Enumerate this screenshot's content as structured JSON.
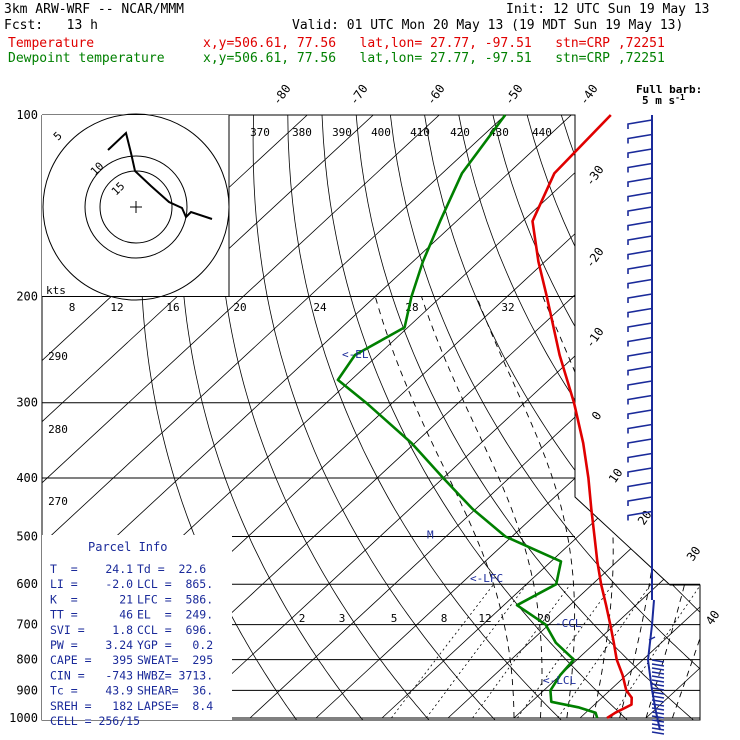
{
  "header": {
    "model": "3km ARW-WRF -- NCAR/MMM",
    "init": "Init: 12 UTC Sun 19 May 13",
    "fcst": "Fcst:   13 h",
    "valid": "Valid: 01 UTC Mon 20 May 13 (19 MDT Sun 19 May 13)",
    "temp_label": "Temperature",
    "temp_info": "x,y=506.61, 77.56   lat,lon= 27.77, -97.51   stn=CRP ,72251",
    "dew_label": "Dewpoint temperature",
    "dew_info": "x,y=506.61, 77.56   lat,lon= 27.77, -97.51   stn=CRP ,72251",
    "barb_note_1": "Full barb:",
    "barb_note_2": "5 m s",
    "barb_note_sup": "-1"
  },
  "colors": {
    "temperature": "#e00000",
    "dewpoint": "#008000",
    "annotation": "#1a2a9a",
    "grid": "#000000"
  },
  "chart_data": {
    "type": "line",
    "title": "",
    "xlabel": "",
    "ylabel": "",
    "pressure_levels": [
      1000,
      900,
      800,
      700,
      600,
      500,
      400,
      300,
      200,
      100
    ],
    "plim": [
      100,
      1000
    ],
    "temperature_axis_labels": [
      "-80",
      "-70",
      "-60",
      "-50",
      "-40",
      "-30",
      "-20",
      "-10",
      "0",
      "10",
      "20",
      "30",
      "40"
    ],
    "theta_labels": [
      "370",
      "380",
      "390",
      "400",
      "410",
      "420",
      "430",
      "440",
      "290",
      "280",
      "270"
    ],
    "mixing_ratio_labels": [
      "2",
      "3",
      "5",
      "8",
      "12",
      "20"
    ],
    "series": [
      {
        "name": "Temperature",
        "unit": "C",
        "points": [
          {
            "p": 1000,
            "t": 24.1
          },
          {
            "p": 980,
            "t": 24.5
          },
          {
            "p": 950,
            "t": 25.6
          },
          {
            "p": 925,
            "t": 24.5
          },
          {
            "p": 900,
            "t": 22.5
          },
          {
            "p": 850,
            "t": 19.5
          },
          {
            "p": 800,
            "t": 16.0
          },
          {
            "p": 750,
            "t": 12.8
          },
          {
            "p": 700,
            "t": 9.3
          },
          {
            "p": 650,
            "t": 5.5
          },
          {
            "p": 600,
            "t": 1.3
          },
          {
            "p": 550,
            "t": -3.0
          },
          {
            "p": 500,
            "t": -7.5
          },
          {
            "p": 450,
            "t": -12.5
          },
          {
            "p": 400,
            "t": -18.0
          },
          {
            "p": 350,
            "t": -24.5
          },
          {
            "p": 300,
            "t": -32.5
          },
          {
            "p": 250,
            "t": -42.5
          },
          {
            "p": 200,
            "t": -54.0
          },
          {
            "p": 175,
            "t": -61.0
          },
          {
            "p": 150,
            "t": -68.5
          },
          {
            "p": 125,
            "t": -73.0
          },
          {
            "p": 100,
            "t": -74.0
          }
        ]
      },
      {
        "name": "Dewpoint temperature",
        "unit": "C",
        "points": [
          {
            "p": 1000,
            "t": 22.6
          },
          {
            "p": 980,
            "t": 21.5
          },
          {
            "p": 960,
            "t": 18.0
          },
          {
            "p": 940,
            "t": 13.0
          },
          {
            "p": 900,
            "t": 11.0
          },
          {
            "p": 850,
            "t": 10.0
          },
          {
            "p": 800,
            "t": 9.5
          },
          {
            "p": 750,
            "t": 4.0
          },
          {
            "p": 700,
            "t": -0.5
          },
          {
            "p": 650,
            "t": -8.0
          },
          {
            "p": 600,
            "t": -5.5
          },
          {
            "p": 550,
            "t": -8.5
          },
          {
            "p": 500,
            "t": -21.0
          },
          {
            "p": 450,
            "t": -30.5
          },
          {
            "p": 400,
            "t": -40.0
          },
          {
            "p": 350,
            "t": -50.5
          },
          {
            "p": 300,
            "t": -64.0
          },
          {
            "p": 275,
            "t": -72.0
          },
          {
            "p": 250,
            "t": -73.5
          },
          {
            "p": 225,
            "t": -70.5
          },
          {
            "p": 200,
            "t": -74.5
          },
          {
            "p": 175,
            "t": -78.5
          },
          {
            "p": 150,
            "t": -82.5
          },
          {
            "p": 125,
            "t": -87.0
          },
          {
            "p": 100,
            "t": -90.0
          }
        ]
      }
    ],
    "levels_marked": [
      {
        "label": "<-EL",
        "p": 249
      },
      {
        "label": "<-LFC",
        "p": 586
      },
      {
        "label": "-CCL",
        "p": 696
      },
      {
        "label": "<-LCL",
        "p": 865
      }
    ],
    "m_marker": {
      "label": "M",
      "p": 500
    },
    "hodograph": {
      "unit_label": "kts",
      "ring_labels": [
        "5",
        "10",
        "15"
      ],
      "speed_axis_labels": [
        "8",
        "12",
        "16",
        "20",
        "24",
        "28",
        "32"
      ]
    },
    "parcel_info": {
      "title": "Parcel Info",
      "rows": [
        [
          "T  =    24.1",
          "Td =  22.6"
        ],
        [
          "LI =    -2.0",
          "LCL =  865."
        ],
        [
          "K  =      21",
          "LFC =  586."
        ],
        [
          "TT =      46",
          "EL  =  249."
        ],
        [
          "SVI =    1.8",
          "CCL =  696."
        ],
        [
          "PW =    3.24",
          "YGP =   0.2"
        ],
        [
          "CAPE =   395",
          "SWEAT=  295"
        ],
        [
          "CIN =   -743",
          "HWBZ= 3713."
        ],
        [
          "Tc =    43.9",
          "SHEAR=  36."
        ],
        [
          "SREH =   182",
          "LAPSE=  8.4"
        ],
        [
          "CELL = 256/15",
          ""
        ]
      ]
    }
  }
}
